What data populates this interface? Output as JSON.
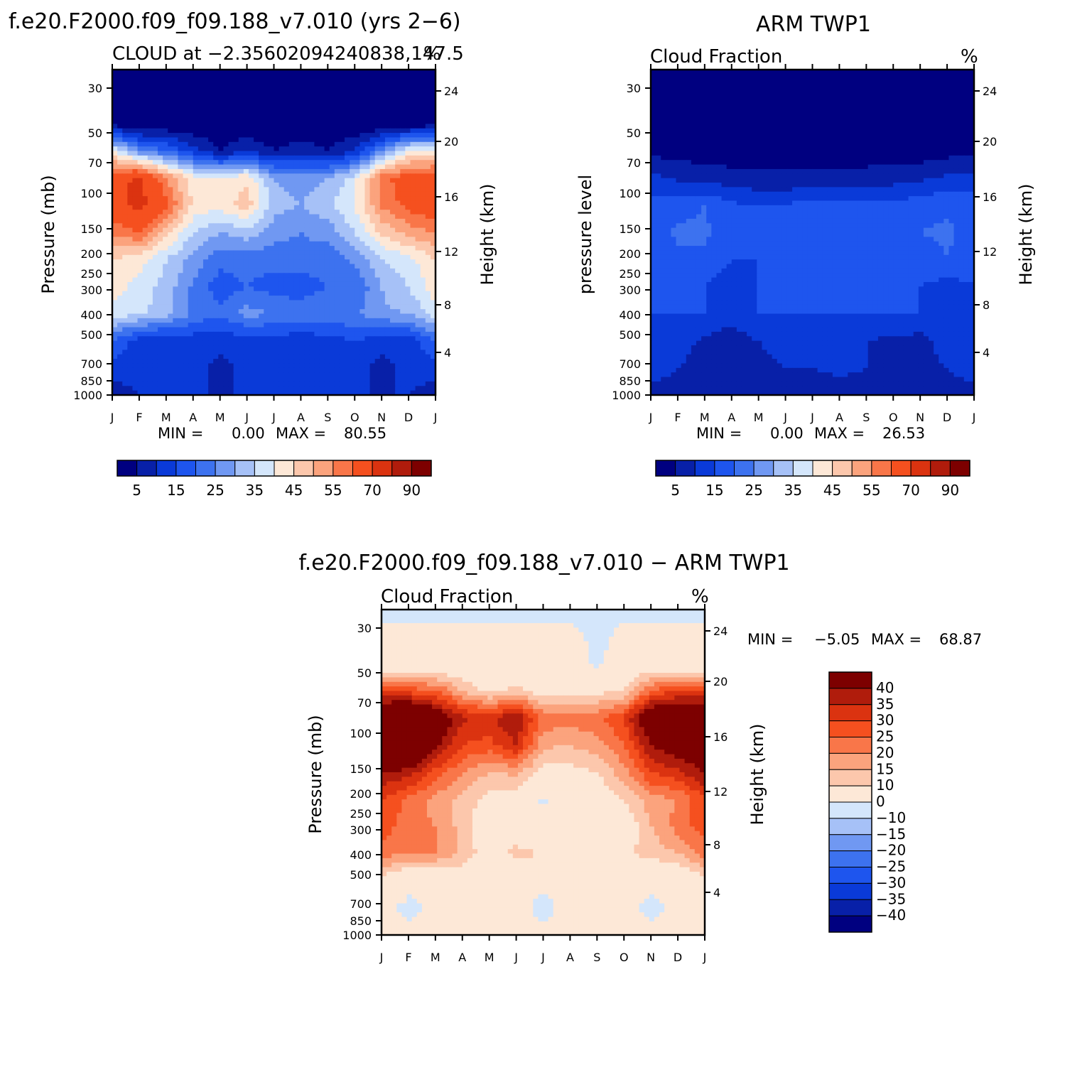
{
  "page": {
    "model_title": "f.e20.F2000.f09_f09.188_v7.010 (yrs 2-6)",
    "obs_title": "ARM TWP1",
    "diff_title": "f.e20.F2000.f09_f09.188_v7.010 - ARM TWP1"
  },
  "chart_data": [
    {
      "id": "model",
      "type": "heatmap",
      "title": "f.e20.F2000.f09_f09.188_v7.010 (yrs 2-6)",
      "subtitle_left": "CLOUD at -2.35602094240838,147.5",
      "subtitle_right": "%",
      "ylabel": "Pressure (mb)",
      "ylabel_right": "Height (km)",
      "x_ticks": [
        "J",
        "F",
        "M",
        "A",
        "M",
        "J",
        "J",
        "A",
        "S",
        "O",
        "N",
        "D",
        "J"
      ],
      "y_ticks": [
        "30",
        "50",
        "70",
        "100",
        "150",
        "200",
        "250",
        "300",
        "400",
        "500",
        "700",
        "850",
        "1000"
      ],
      "y_ticks_right": [
        "24",
        "20",
        "16",
        "12",
        "8",
        "4"
      ],
      "stats": {
        "min_label": "MIN =",
        "min": "0.00",
        "max_label": "MAX =",
        "max": "80.55"
      },
      "colorbar": {
        "orientation": "horizontal",
        "labels": [
          "5",
          "15",
          "25",
          "35",
          "45",
          "55",
          "70",
          "90"
        ],
        "levels": [
          5,
          10,
          15,
          20,
          25,
          30,
          35,
          40,
          45,
          50,
          55,
          60,
          70,
          80,
          90
        ],
        "colors": [
          "#000080",
          "#0820a8",
          "#0a3ad8",
          "#1e55ee",
          "#3d72ef",
          "#7098f2",
          "#a6c1f7",
          "#d4e6fb",
          "#fde8d7",
          "#fcc7ac",
          "#fba37d",
          "#f97649",
          "#f5501f",
          "#db3310",
          "#b01c0c",
          "#7d0000"
        ]
      },
      "values": [
        [
          0,
          0,
          0,
          0,
          0,
          0,
          0,
          0,
          0,
          0,
          0,
          0,
          0
        ],
        [
          0,
          0,
          0,
          0,
          0,
          0,
          0,
          0,
          0,
          0,
          0,
          0,
          0
        ],
        [
          3,
          0,
          0,
          0,
          0,
          0,
          0,
          0,
          0,
          0,
          0,
          0,
          3
        ],
        [
          40,
          25,
          20,
          12,
          5,
          10,
          5,
          8,
          5,
          10,
          25,
          40,
          40
        ],
        [
          66,
          72,
          55,
          42,
          40,
          44,
          30,
          28,
          30,
          38,
          58,
          64,
          66
        ],
        [
          65,
          73,
          62,
          44,
          42,
          48,
          32,
          30,
          34,
          40,
          56,
          62,
          65
        ],
        [
          56,
          60,
          47,
          35,
          30,
          33,
          27,
          25,
          27,
          35,
          46,
          52,
          56
        ],
        [
          45,
          42,
          35,
          28,
          22,
          22,
          22,
          23,
          22,
          26,
          35,
          38,
          45
        ],
        [
          43,
          38,
          33,
          24,
          17,
          20,
          18,
          17,
          20,
          20,
          30,
          35,
          43
        ],
        [
          38,
          36,
          32,
          24,
          21,
          27,
          25,
          23,
          25,
          24,
          29,
          30,
          38
        ],
        [
          20,
          12,
          10,
          12,
          12,
          12,
          12,
          12,
          12,
          15,
          12,
          12,
          20
        ],
        [
          12,
          12,
          10,
          12,
          8,
          12,
          12,
          12,
          12,
          12,
          8,
          12,
          12
        ],
        [
          8,
          10,
          10,
          10,
          10,
          10,
          10,
          10,
          10,
          10,
          10,
          10,
          8
        ]
      ]
    },
    {
      "id": "obs",
      "type": "heatmap",
      "title": "ARM TWP1",
      "subtitle_left": "Cloud Fraction",
      "subtitle_right": "%",
      "ylabel": "pressure level",
      "ylabel_right": "Height (km)",
      "x_ticks": [
        "J",
        "F",
        "M",
        "A",
        "M",
        "J",
        "J",
        "A",
        "S",
        "O",
        "N",
        "D",
        "J"
      ],
      "y_ticks": [
        "30",
        "50",
        "70",
        "100",
        "150",
        "200",
        "250",
        "300",
        "400",
        "500",
        "700",
        "850",
        "1000"
      ],
      "y_ticks_right": [
        "24",
        "20",
        "16",
        "12",
        "8",
        "4"
      ],
      "stats": {
        "min_label": "MIN =",
        "min": "0.00",
        "max_label": "MAX =",
        "max": "26.53"
      },
      "colorbar": {
        "orientation": "horizontal",
        "labels": [
          "5",
          "15",
          "25",
          "35",
          "45",
          "55",
          "70",
          "90"
        ],
        "levels": [
          5,
          10,
          15,
          20,
          25,
          30,
          35,
          40,
          45,
          50,
          55,
          60,
          70,
          80,
          90
        ],
        "colors": [
          "#000080",
          "#0820a8",
          "#0a3ad8",
          "#1e55ee",
          "#3d72ef",
          "#7098f2",
          "#a6c1f7",
          "#d4e6fb",
          "#fde8d7",
          "#fcc7ac",
          "#fba37d",
          "#f97649",
          "#f5501f",
          "#db3310",
          "#b01c0c",
          "#7d0000"
        ]
      },
      "values": [
        [
          0,
          0,
          0,
          0,
          0,
          0,
          0,
          0,
          0,
          0,
          0,
          0,
          0
        ],
        [
          0,
          0,
          0,
          0,
          0,
          0,
          0,
          0,
          0,
          0,
          0,
          0,
          0
        ],
        [
          0,
          0,
          0,
          0,
          0,
          0,
          0,
          0,
          0,
          0,
          0,
          0,
          0
        ],
        [
          3,
          3,
          2,
          2,
          2,
          2,
          2,
          2,
          2,
          2,
          2,
          3,
          3
        ],
        [
          12,
          9,
          8,
          7,
          6,
          6,
          6,
          6,
          7,
          8,
          9,
          11,
          12
        ],
        [
          16,
          18,
          20,
          16,
          15,
          15,
          18,
          16,
          16,
          16,
          18,
          19,
          18
        ],
        [
          17,
          21,
          21,
          16,
          16,
          16,
          19,
          17,
          17,
          17,
          20,
          21,
          18
        ],
        [
          16,
          19,
          19,
          15,
          15,
          15,
          20,
          16,
          15,
          15,
          17,
          20,
          16
        ],
        [
          16,
          16,
          15,
          12,
          15,
          15,
          17,
          15,
          15,
          15,
          15,
          13,
          15
        ],
        [
          15,
          15,
          15,
          11,
          15,
          15,
          15,
          15,
          15,
          15,
          15,
          15,
          15
        ],
        [
          12,
          12,
          9,
          8,
          10,
          12,
          11,
          12,
          10,
          9,
          8,
          12,
          12
        ],
        [
          12,
          10,
          8,
          7,
          9,
          10,
          10,
          11,
          10,
          9,
          9,
          10,
          12
        ],
        [
          8,
          8,
          8,
          8,
          8,
          8,
          8,
          8,
          8,
          8,
          8,
          8,
          8
        ]
      ]
    },
    {
      "id": "diff",
      "type": "heatmap",
      "title": "f.e20.F2000.f09_f09.188_v7.010 - ARM TWP1",
      "subtitle_left": "Cloud Fraction",
      "subtitle_right": "%",
      "ylabel": "Pressure (mb)",
      "ylabel_right": "Height (km)",
      "x_ticks": [
        "J",
        "F",
        "M",
        "A",
        "M",
        "J",
        "J",
        "A",
        "S",
        "O",
        "N",
        "D",
        "J"
      ],
      "y_ticks": [
        "30",
        "50",
        "70",
        "100",
        "150",
        "200",
        "250",
        "300",
        "400",
        "500",
        "700",
        "850",
        "1000"
      ],
      "y_ticks_right": [
        "24",
        "20",
        "16",
        "12",
        "8",
        "4"
      ],
      "stats": {
        "min_label": "MIN =",
        "min": "-5.05",
        "max_label": "MAX =",
        "max": "68.87"
      },
      "colorbar": {
        "orientation": "vertical",
        "labels": [
          "40",
          "35",
          "30",
          "25",
          "20",
          "15",
          "10",
          "0",
          "-10",
          "-15",
          "-20",
          "-25",
          "-30",
          "-35",
          "-40"
        ],
        "levels": [
          -40,
          -35,
          -30,
          -25,
          -20,
          -15,
          -10,
          0,
          10,
          15,
          20,
          25,
          30,
          35,
          40
        ],
        "colors": [
          "#000080",
          "#0820a8",
          "#0a3ad8",
          "#1e55ee",
          "#3d72ef",
          "#7098f2",
          "#a6c1f7",
          "#d4e6fb",
          "#fde8d7",
          "#fcc7ac",
          "#fba37d",
          "#f97649",
          "#f5501f",
          "#db3310",
          "#b01c0c",
          "#7d0000"
        ]
      },
      "values": [
        [
          -1,
          -1,
          -1,
          -1,
          -1,
          -1,
          -1,
          -1,
          -1,
          -1,
          -1,
          -1,
          -1
        ],
        [
          1,
          1,
          1,
          1,
          1,
          1,
          1,
          1,
          -1,
          1,
          1,
          1,
          1
        ],
        [
          3,
          3,
          3,
          3,
          3,
          3,
          3,
          3,
          -1,
          3,
          3,
          3,
          3
        ],
        [
          30,
          28,
          25,
          15,
          8,
          12,
          6,
          7,
          8,
          10,
          25,
          30,
          30
        ],
        [
          52,
          60,
          48,
          36,
          34,
          40,
          24,
          22,
          24,
          30,
          50,
          54,
          52
        ],
        [
          48,
          58,
          42,
          30,
          28,
          35,
          16,
          15,
          18,
          25,
          40,
          46,
          48
        ],
        [
          40,
          38,
          28,
          20,
          15,
          16,
          8,
          8,
          10,
          18,
          30,
          34,
          40
        ],
        [
          30,
          24,
          18,
          13,
          8,
          7,
          -1,
          7,
          5,
          10,
          18,
          20,
          30
        ],
        [
          28,
          22,
          20,
          13,
          4,
          5,
          1,
          2,
          5,
          4,
          15,
          22,
          28
        ],
        [
          22,
          20,
          20,
          14,
          6,
          12,
          10,
          8,
          10,
          9,
          12,
          15,
          22
        ],
        [
          8,
          1,
          1,
          4,
          1,
          1,
          1,
          1,
          1,
          1,
          1,
          1,
          8
        ],
        [
          1,
          -1,
          1,
          1,
          1,
          1,
          -1,
          1,
          1,
          1,
          -1,
          1,
          1
        ],
        [
          1,
          1,
          1,
          1,
          1,
          1,
          1,
          1,
          1,
          1,
          1,
          1,
          1
        ]
      ]
    }
  ]
}
